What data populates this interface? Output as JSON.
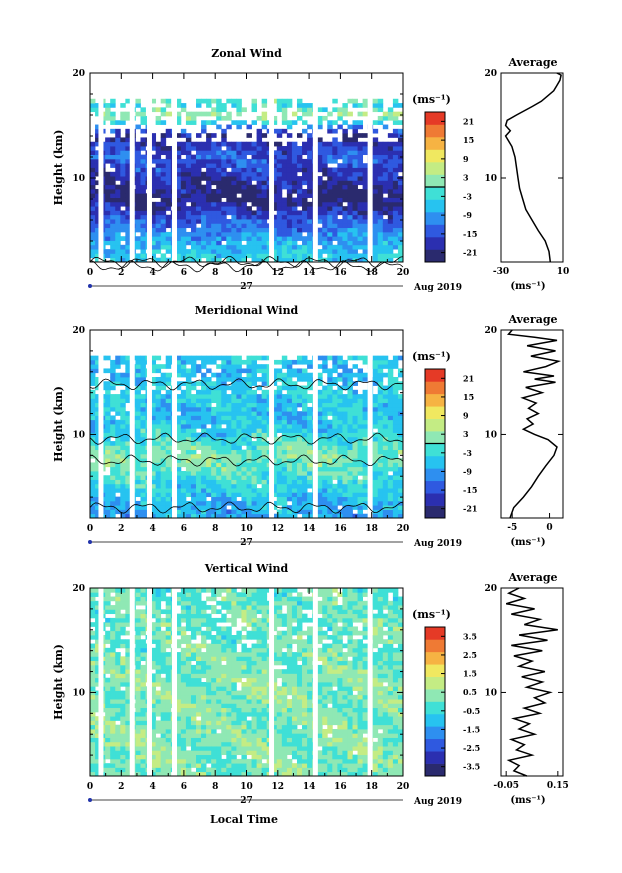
{
  "colors": {
    "colormap": [
      "#2a2a6e",
      "#2b2fb0",
      "#2f59e0",
      "#2e8ff0",
      "#27c3f0",
      "#3fe0d6",
      "#8fe8b4",
      "#c4ec84",
      "#f0e860",
      "#f6b343",
      "#ef7a34",
      "#e53a26"
    ],
    "axis": "#000000",
    "trace": "#000000",
    "gap": "#ffffff"
  },
  "shared": {
    "time_ticks": [
      "0",
      "2",
      "4",
      "6",
      "8",
      "10",
      "12",
      "14",
      "16",
      "18",
      "20"
    ],
    "day_label": "27",
    "month_label": "Aug 2019",
    "xlabel": "Local Time",
    "ylabel": "Height (km)",
    "unit_label": "(ms⁻¹)",
    "avg_title": "Average",
    "height_ticks": [
      "10",
      "20"
    ]
  },
  "chart_data": [
    {
      "type": "heatmap",
      "title": "Zonal Wind",
      "x_range": [
        0,
        20
      ],
      "y_range": [
        2,
        20
      ],
      "colorbar": {
        "ticks": [
          "21",
          "15",
          "9",
          "3",
          "-3",
          "-9",
          "-15",
          "-21"
        ],
        "range": [
          -24,
          24
        ],
        "zero_line": true
      },
      "profile_by_height": [
        [
          2,
          -4
        ],
        [
          4,
          -8
        ],
        [
          6,
          -14
        ],
        [
          8,
          -22
        ],
        [
          10,
          -18
        ],
        [
          12,
          -14
        ],
        [
          14,
          -20
        ],
        [
          16,
          4
        ],
        [
          17,
          -4
        ],
        [
          18,
          10
        ],
        [
          19,
          14
        ],
        [
          20,
          12
        ]
      ],
      "contour_heights": [
        2.0,
        1.6
      ],
      "average": {
        "xticks": [
          "-30",
          "10"
        ],
        "xlim": [
          -30,
          10
        ],
        "points": [
          [
            1.8,
            2
          ],
          [
            1.0,
            3
          ],
          [
            -1.5,
            4
          ],
          [
            -6,
            5
          ],
          [
            -10,
            6
          ],
          [
            -14,
            7
          ],
          [
            -16,
            8
          ],
          [
            -18,
            9
          ],
          [
            -19,
            10
          ],
          [
            -20,
            11
          ],
          [
            -21,
            12
          ],
          [
            -23,
            13
          ],
          [
            -27,
            14
          ],
          [
            -24,
            14.5
          ],
          [
            -27,
            15
          ],
          [
            -26,
            15.5
          ],
          [
            -20,
            16
          ],
          [
            -10,
            16.8
          ],
          [
            -4,
            17.3
          ],
          [
            0,
            17.8
          ],
          [
            4,
            18.3
          ],
          [
            6,
            18.8
          ],
          [
            8,
            19.3
          ],
          [
            8.8,
            19.8
          ],
          [
            6,
            20
          ]
        ]
      }
    },
    {
      "type": "heatmap",
      "title": "Meridional Wind",
      "x_range": [
        0,
        20
      ],
      "y_range": [
        2,
        20
      ],
      "colorbar": {
        "ticks": [
          "21",
          "15",
          "9",
          "3",
          "-3",
          "-9",
          "-15",
          "-21"
        ],
        "range": [
          -24,
          24
        ],
        "zero_line": true
      },
      "profile_by_height": [
        [
          2,
          -8
        ],
        [
          4,
          -6
        ],
        [
          6,
          -2
        ],
        [
          8,
          2
        ],
        [
          10,
          -4
        ],
        [
          12,
          -6
        ],
        [
          14,
          -4
        ],
        [
          16,
          -6
        ],
        [
          17,
          -5
        ],
        [
          18,
          -7
        ]
      ],
      "contour_heights": [
        3.0,
        7.5,
        9.6,
        14.8
      ],
      "average": {
        "xticks": [
          "-5",
          "0"
        ],
        "xlim": [
          -6.5,
          1.8
        ],
        "points": [
          [
            -5.3,
            2
          ],
          [
            -4.8,
            3
          ],
          [
            -3.5,
            4
          ],
          [
            -2.4,
            5
          ],
          [
            -1.5,
            6
          ],
          [
            -0.5,
            7
          ],
          [
            0.6,
            8
          ],
          [
            1.0,
            8.8
          ],
          [
            -0.2,
            9.5
          ],
          [
            -2.0,
            10
          ],
          [
            -3.5,
            10.5
          ],
          [
            -2.2,
            11
          ],
          [
            -3.0,
            11.5
          ],
          [
            -1.5,
            12
          ],
          [
            -2.8,
            12.5
          ],
          [
            -1.8,
            13
          ],
          [
            -3.6,
            13.5
          ],
          [
            -1.0,
            14
          ],
          [
            -3.2,
            14.5
          ],
          [
            0.8,
            15
          ],
          [
            -2.0,
            15.3
          ],
          [
            0.6,
            15.6
          ],
          [
            -3.5,
            16
          ],
          [
            -0.5,
            16.5
          ],
          [
            1.2,
            17
          ],
          [
            -2.5,
            17.5
          ],
          [
            0.8,
            18
          ],
          [
            -3.0,
            18.5
          ],
          [
            1.0,
            19
          ],
          [
            -2.0,
            19.3
          ],
          [
            -5.5,
            19.6
          ],
          [
            -5.0,
            20
          ]
        ]
      }
    },
    {
      "type": "heatmap",
      "title": "Vertical Wind",
      "x_range": [
        0,
        20
      ],
      "y_range": [
        2,
        20
      ],
      "colorbar": {
        "ticks": [
          "3.5",
          "2.5",
          "1.5",
          "0.5",
          "-0.5",
          "-1.5",
          "-2.5",
          "-3.5"
        ],
        "range": [
          -4,
          4
        ],
        "zero_line": false
      },
      "profile_by_height": [
        [
          2,
          0.2
        ],
        [
          6,
          0.3
        ],
        [
          10,
          0.3
        ],
        [
          14,
          0.1
        ],
        [
          18,
          0.0
        ],
        [
          20,
          0.0
        ]
      ],
      "contour_heights": [],
      "average": {
        "xticks": [
          "-0.05",
          "0.15"
        ],
        "xlim": [
          -0.07,
          0.17
        ],
        "points": [
          [
            0.03,
            2
          ],
          [
            -0.02,
            2.5
          ],
          [
            0.0,
            3
          ],
          [
            -0.04,
            3.5
          ],
          [
            0.05,
            4
          ],
          [
            -0.01,
            4.5
          ],
          [
            0.02,
            5
          ],
          [
            -0.03,
            5.5
          ],
          [
            0.06,
            6
          ],
          [
            0.0,
            6.5
          ],
          [
            0.04,
            7
          ],
          [
            -0.02,
            7.5
          ],
          [
            0.08,
            8
          ],
          [
            0.02,
            8.5
          ],
          [
            0.1,
            9
          ],
          [
            0.06,
            9.5
          ],
          [
            0.12,
            10
          ],
          [
            0.03,
            10.5
          ],
          [
            0.09,
            11
          ],
          [
            0.01,
            11.5
          ],
          [
            0.1,
            12
          ],
          [
            0.0,
            12.5
          ],
          [
            0.05,
            13
          ],
          [
            -0.02,
            13.5
          ],
          [
            0.09,
            14
          ],
          [
            -0.03,
            14.5
          ],
          [
            0.11,
            15
          ],
          [
            0.0,
            15.5
          ],
          [
            0.15,
            16
          ],
          [
            0.02,
            16.5
          ],
          [
            0.08,
            17
          ],
          [
            -0.03,
            17.5
          ],
          [
            0.06,
            18
          ],
          [
            -0.05,
            18.5
          ],
          [
            0.02,
            19
          ],
          [
            -0.04,
            19.5
          ],
          [
            0.0,
            20
          ]
        ]
      }
    }
  ]
}
